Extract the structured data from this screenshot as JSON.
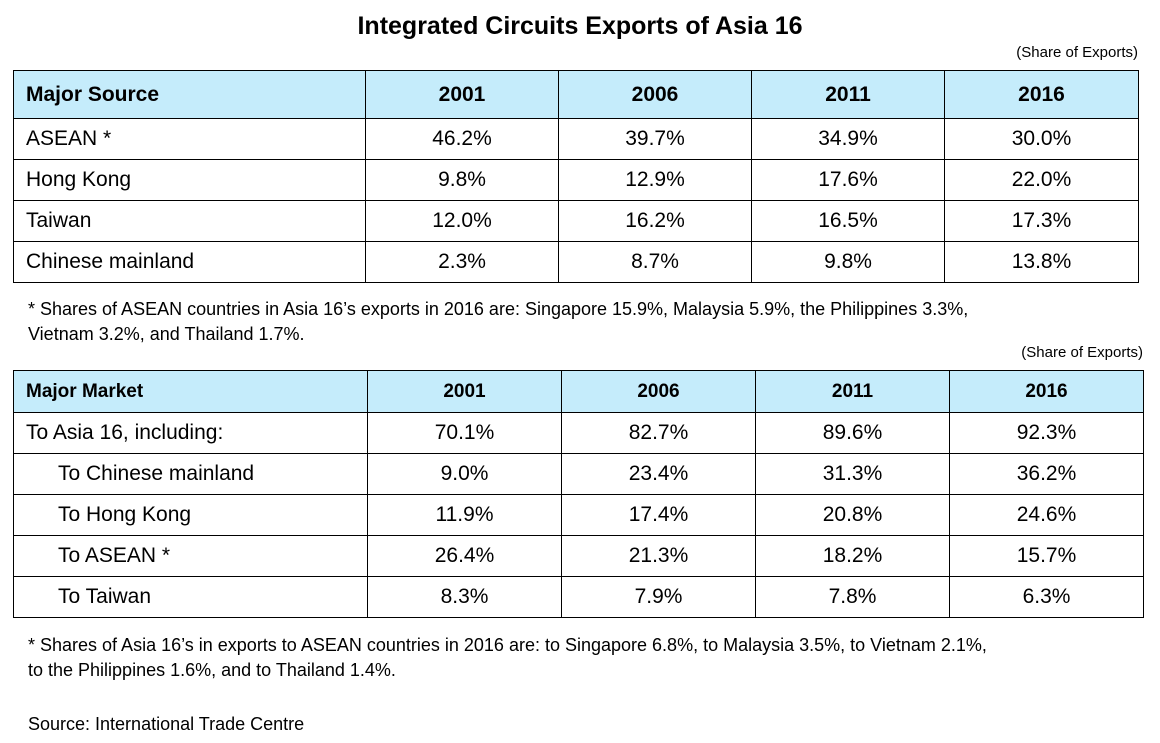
{
  "title": "Integrated Circuits Exports of Asia 16",
  "table1": {
    "unit": "(Share of Exports)",
    "headers": [
      "Major Source",
      "2001",
      "2006",
      "2011",
      "2016"
    ],
    "rows": [
      {
        "label": "ASEAN *",
        "values": [
          "46.2%",
          "39.7%",
          "34.9%",
          "30.0%"
        ]
      },
      {
        "label": "Hong Kong",
        "values": [
          "9.8%",
          "12.9%",
          "17.6%",
          "22.0%"
        ]
      },
      {
        "label": "Taiwan",
        "values": [
          "12.0%",
          "16.2%",
          "16.5%",
          "17.3%"
        ]
      },
      {
        "label": "Chinese mainland",
        "values": [
          "2.3%",
          "8.7%",
          "9.8%",
          "13.8%"
        ]
      }
    ],
    "note_line1": "* Shares of ASEAN countries in Asia 16’s exports in 2016 are: Singapore 15.9%, Malaysia 5.9%, the Philippines 3.3%,",
    "note_line2": "Vietnam 3.2%, and Thailand 1.7%."
  },
  "table2": {
    "unit": "(Share of Exports)",
    "headers": [
      "Major Market",
      "2001",
      "2006",
      "2011",
      "2016"
    ],
    "rows": [
      {
        "label": "To Asia 16, including:",
        "values": [
          "70.1%",
          "82.7%",
          "89.6%",
          "92.3%"
        ]
      },
      {
        "label": "To Chinese mainland",
        "values": [
          "9.0%",
          "23.4%",
          "31.3%",
          "36.2%"
        ]
      },
      {
        "label": "To Hong Kong",
        "values": [
          "11.9%",
          "17.4%",
          "20.8%",
          "24.6%"
        ]
      },
      {
        "label": "To ASEAN *",
        "values": [
          "26.4%",
          "21.3%",
          "18.2%",
          "15.7%"
        ]
      },
      {
        "label": "To Taiwan",
        "values": [
          "8.3%",
          "7.9%",
          "7.8%",
          "6.3%"
        ]
      }
    ],
    "note_line1": "* Shares of Asia 16’s in exports to ASEAN countries in 2016 are: to Singapore 6.8%, to Malaysia 3.5%, to Vietnam 2.1%,",
    "note_line2": "to the Philippines 1.6%, and to Thailand 1.4%."
  },
  "source": "Source: International Trade Centre"
}
